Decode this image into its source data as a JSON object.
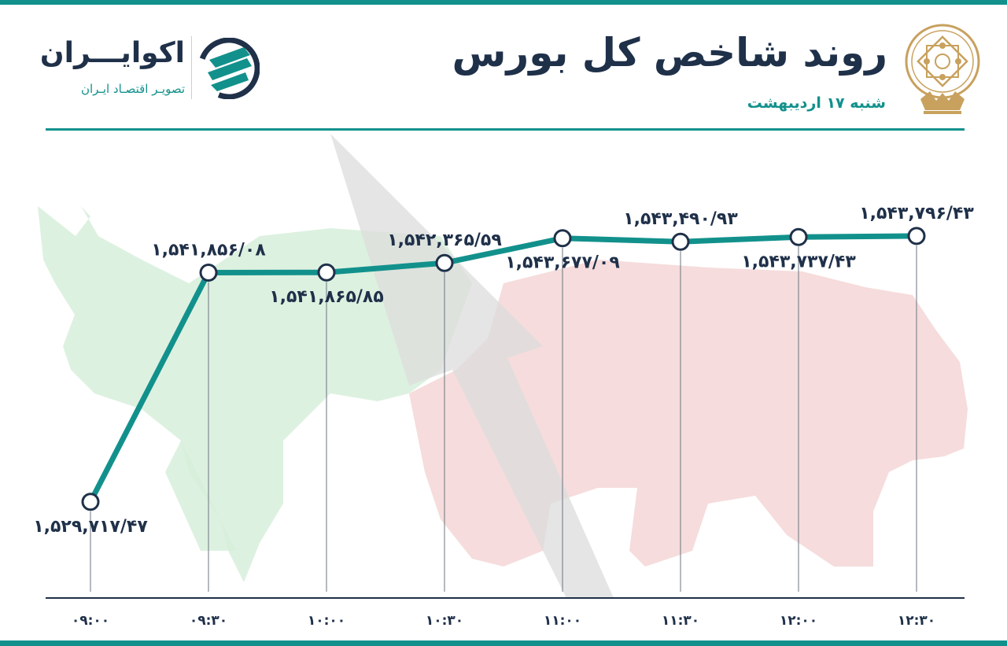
{
  "header": {
    "title": "روند شاخص کل بورس",
    "subtitle": "شنبه ۱۷ اردیبهشت"
  },
  "brand": {
    "name": "اکوایـــران",
    "tagline": "تصویـر اقتصـاد ایـران"
  },
  "icons": [
    "exchange-emblem-icon",
    "brand-logo-icon",
    "bull-silhouette",
    "bear-silhouette"
  ],
  "colors": {
    "accent": "#12918c",
    "text": "#1f3049",
    "bull": "#d7eedb",
    "bear": "#f4d6d6",
    "arrow": "#dcdcdc"
  },
  "chart_data": {
    "type": "line",
    "title": "روند شاخص کل بورس",
    "categories": [
      "09:00",
      "09:30",
      "10:00",
      "10:30",
      "11:00",
      "11:30",
      "12:00",
      "12:30"
    ],
    "tick_labels": [
      "۰۹:۰۰",
      "۰۹:۳۰",
      "۱۰:۰۰",
      "۱۰:۳۰",
      "۱۱:۰۰",
      "۱۱:۳۰",
      "۱۲:۰۰",
      "۱۲:۳۰"
    ],
    "values": [
      1529717.47,
      1541856.08,
      1541865.85,
      1542365.59,
      1543677.09,
      1543490.93,
      1543737.43,
      1543796.43
    ],
    "data_labels": [
      "۱,۵۲۹,۷۱۷/۴۷",
      "۱,۵۴۱,۸۵۶/۰۸",
      "۱,۵۴۱,۸۶۵/۸۵",
      "۱,۵۴۲,۳۶۵/۵۹",
      "۱,۵۴۳,۶۷۷/۰۹",
      "۱,۵۴۳,۴۹۰/۹۳",
      "۱,۵۴۳,۷۳۷/۴۳",
      "۱,۵۴۳,۷۹۶/۴۳"
    ],
    "label_position": [
      "below",
      "above",
      "below",
      "above",
      "below",
      "above",
      "below",
      "above"
    ],
    "grid": false
  }
}
